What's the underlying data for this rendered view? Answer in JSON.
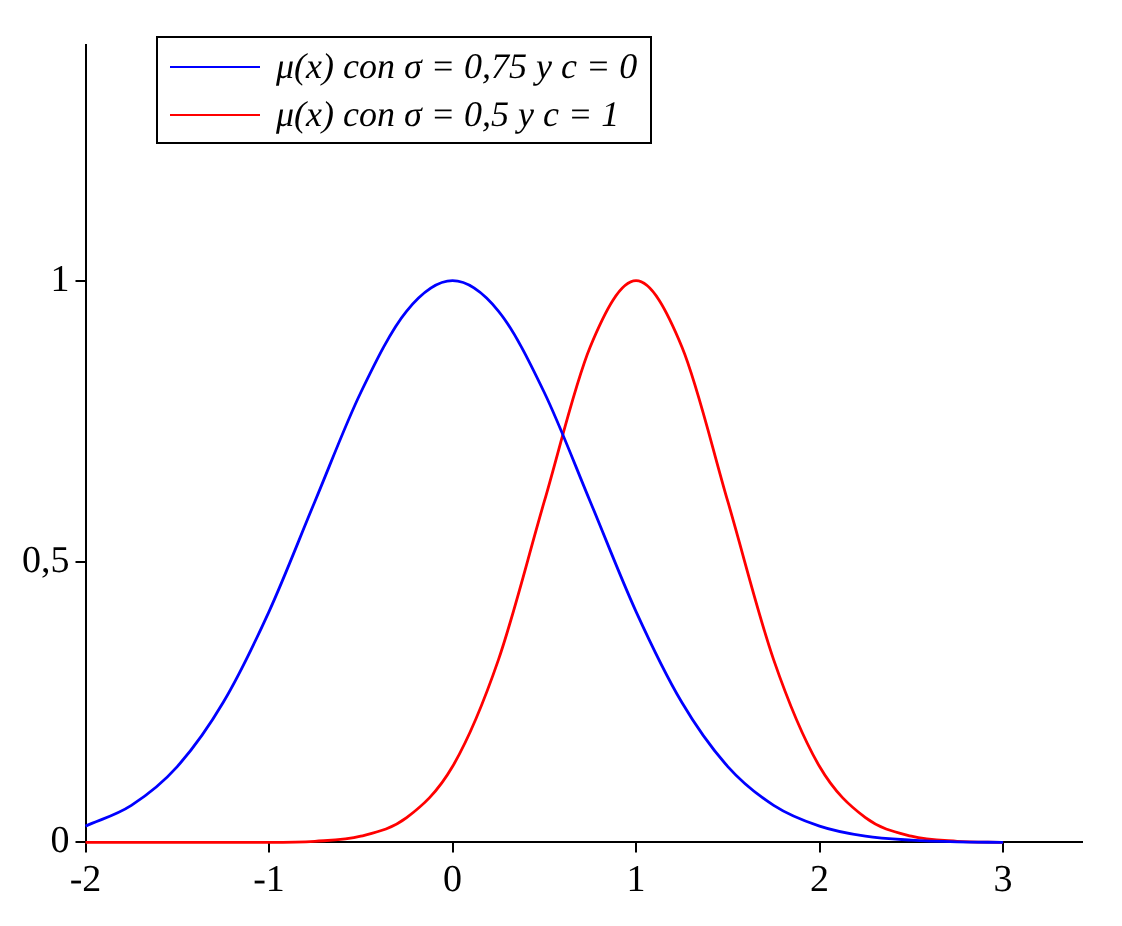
{
  "chart_data": {
    "type": "line",
    "x": [
      -2,
      -1.75,
      -1.5,
      -1.25,
      -1,
      -0.75,
      -0.5,
      -0.25,
      0,
      0.25,
      0.5,
      0.75,
      1,
      1.25,
      1.5,
      1.75,
      2,
      2.25,
      2.5,
      2.75,
      3
    ],
    "series": [
      {
        "name": "μ(x) con σ = 0,75 y c = 0",
        "color": "#0000ff",
        "values": [
          0.029,
          0.066,
          0.135,
          0.249,
          0.411,
          0.607,
          0.801,
          0.946,
          1,
          0.946,
          0.801,
          0.607,
          0.411,
          0.249,
          0.135,
          0.066,
          0.029,
          0.011,
          0.004,
          0.001,
          0
        ]
      },
      {
        "name": "μ(x) con σ = 0,5 y c = 1",
        "color": "#ff0000",
        "values": [
          0,
          0,
          0,
          0,
          0,
          0.002,
          0.011,
          0.044,
          0.135,
          0.325,
          0.607,
          0.882,
          1,
          0.882,
          0.607,
          0.325,
          0.135,
          0.044,
          0.011,
          0.002,
          0
        ]
      }
    ],
    "xlim": [
      -2,
      3.43
    ],
    "ylim": [
      0,
      1.42
    ],
    "xticks": [
      -2,
      -1,
      0,
      1,
      2,
      3
    ],
    "yticks": [
      0,
      {
        "value": 0.5,
        "label": "0,5"
      },
      1
    ],
    "grid": false,
    "legend": "top left",
    "marker": "none",
    "line_style": "solid"
  }
}
